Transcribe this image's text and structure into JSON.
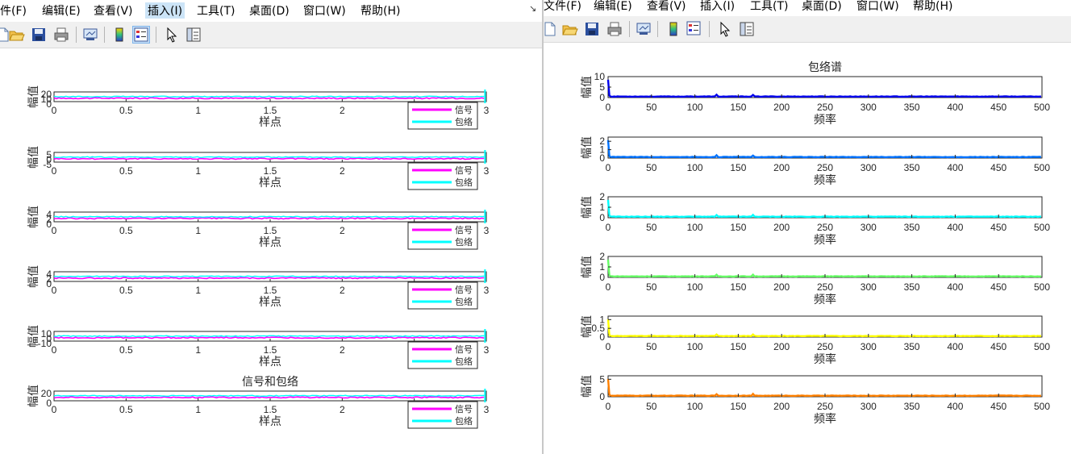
{
  "menu": [
    "文件(F)",
    "编辑(E)",
    "查看(V)",
    "插入(I)",
    "工具(T)",
    "桌面(D)",
    "窗口(W)",
    "帮助(H)"
  ],
  "left_window": {
    "menu_visible": [
      "件(F)",
      "编辑(E)",
      "查看(V)",
      "插入(I)",
      "工具(T)",
      "桌面(D)",
      "窗口(W)",
      "帮助(H)"
    ],
    "active_menu": "插入(I)",
    "corner_glyph": "↘"
  },
  "chart_data": [
    {
      "type": "line",
      "title": "信号和包络",
      "xlabel": "样点",
      "ylabel": "幅值",
      "xlim": [
        0,
        3
      ],
      "xticks": [
        "0",
        "0.5",
        "1",
        "1.5",
        "2",
        "2.5",
        "3"
      ],
      "legend": [
        "信号",
        "包络"
      ],
      "legend_position": "bottom-right",
      "series_colors": {
        "信号": "#ff00ff",
        "包络": "#00ffff"
      },
      "subplots": [
        {
          "yticks": [
            "20",
            "10",
            "0"
          ],
          "ylim": [
            0,
            20
          ]
        },
        {
          "yticks": [
            "5",
            "0",
            "-5"
          ],
          "ylim": [
            -5,
            5
          ]
        },
        {
          "yticks": [
            "4",
            "2",
            "0"
          ],
          "ylim": [
            0,
            4
          ]
        },
        {
          "yticks": [
            "4",
            "2",
            "0"
          ],
          "ylim": [
            0,
            4
          ]
        },
        {
          "yticks": [
            "10",
            "0",
            "-10"
          ],
          "ylim": [
            -10,
            10
          ]
        },
        {
          "yticks": [
            "20",
            "0"
          ],
          "ylim": [
            0,
            20
          ]
        }
      ]
    },
    {
      "type": "line",
      "title": "包络谱",
      "xlabel": "频率",
      "ylabel": "幅值",
      "xlim": [
        0,
        500
      ],
      "xticks": [
        "0",
        "50",
        "100",
        "150",
        "200",
        "250",
        "300",
        "350",
        "400",
        "450",
        "500"
      ],
      "subplots": [
        {
          "color": "#0000ee",
          "yticks": [
            "10",
            "5",
            "0"
          ],
          "ylim": [
            0,
            10
          ]
        },
        {
          "color": "#0072ff",
          "yticks": [
            "2",
            "1",
            "0"
          ],
          "ylim": [
            0,
            2.5
          ]
        },
        {
          "color": "#00ffff",
          "yticks": [
            "2",
            "1",
            "0"
          ],
          "ylim": [
            0,
            2
          ]
        },
        {
          "color": "#66ff66",
          "yticks": [
            "2",
            "1",
            "0"
          ],
          "ylim": [
            0,
            2
          ]
        },
        {
          "color": "#ffff00",
          "yticks": [
            "1",
            "0.5",
            "0"
          ],
          "ylim": [
            0,
            1.2
          ]
        },
        {
          "color": "#ff8000",
          "yticks": [
            "5",
            "0"
          ],
          "ylim": [
            0,
            6
          ]
        }
      ]
    }
  ]
}
